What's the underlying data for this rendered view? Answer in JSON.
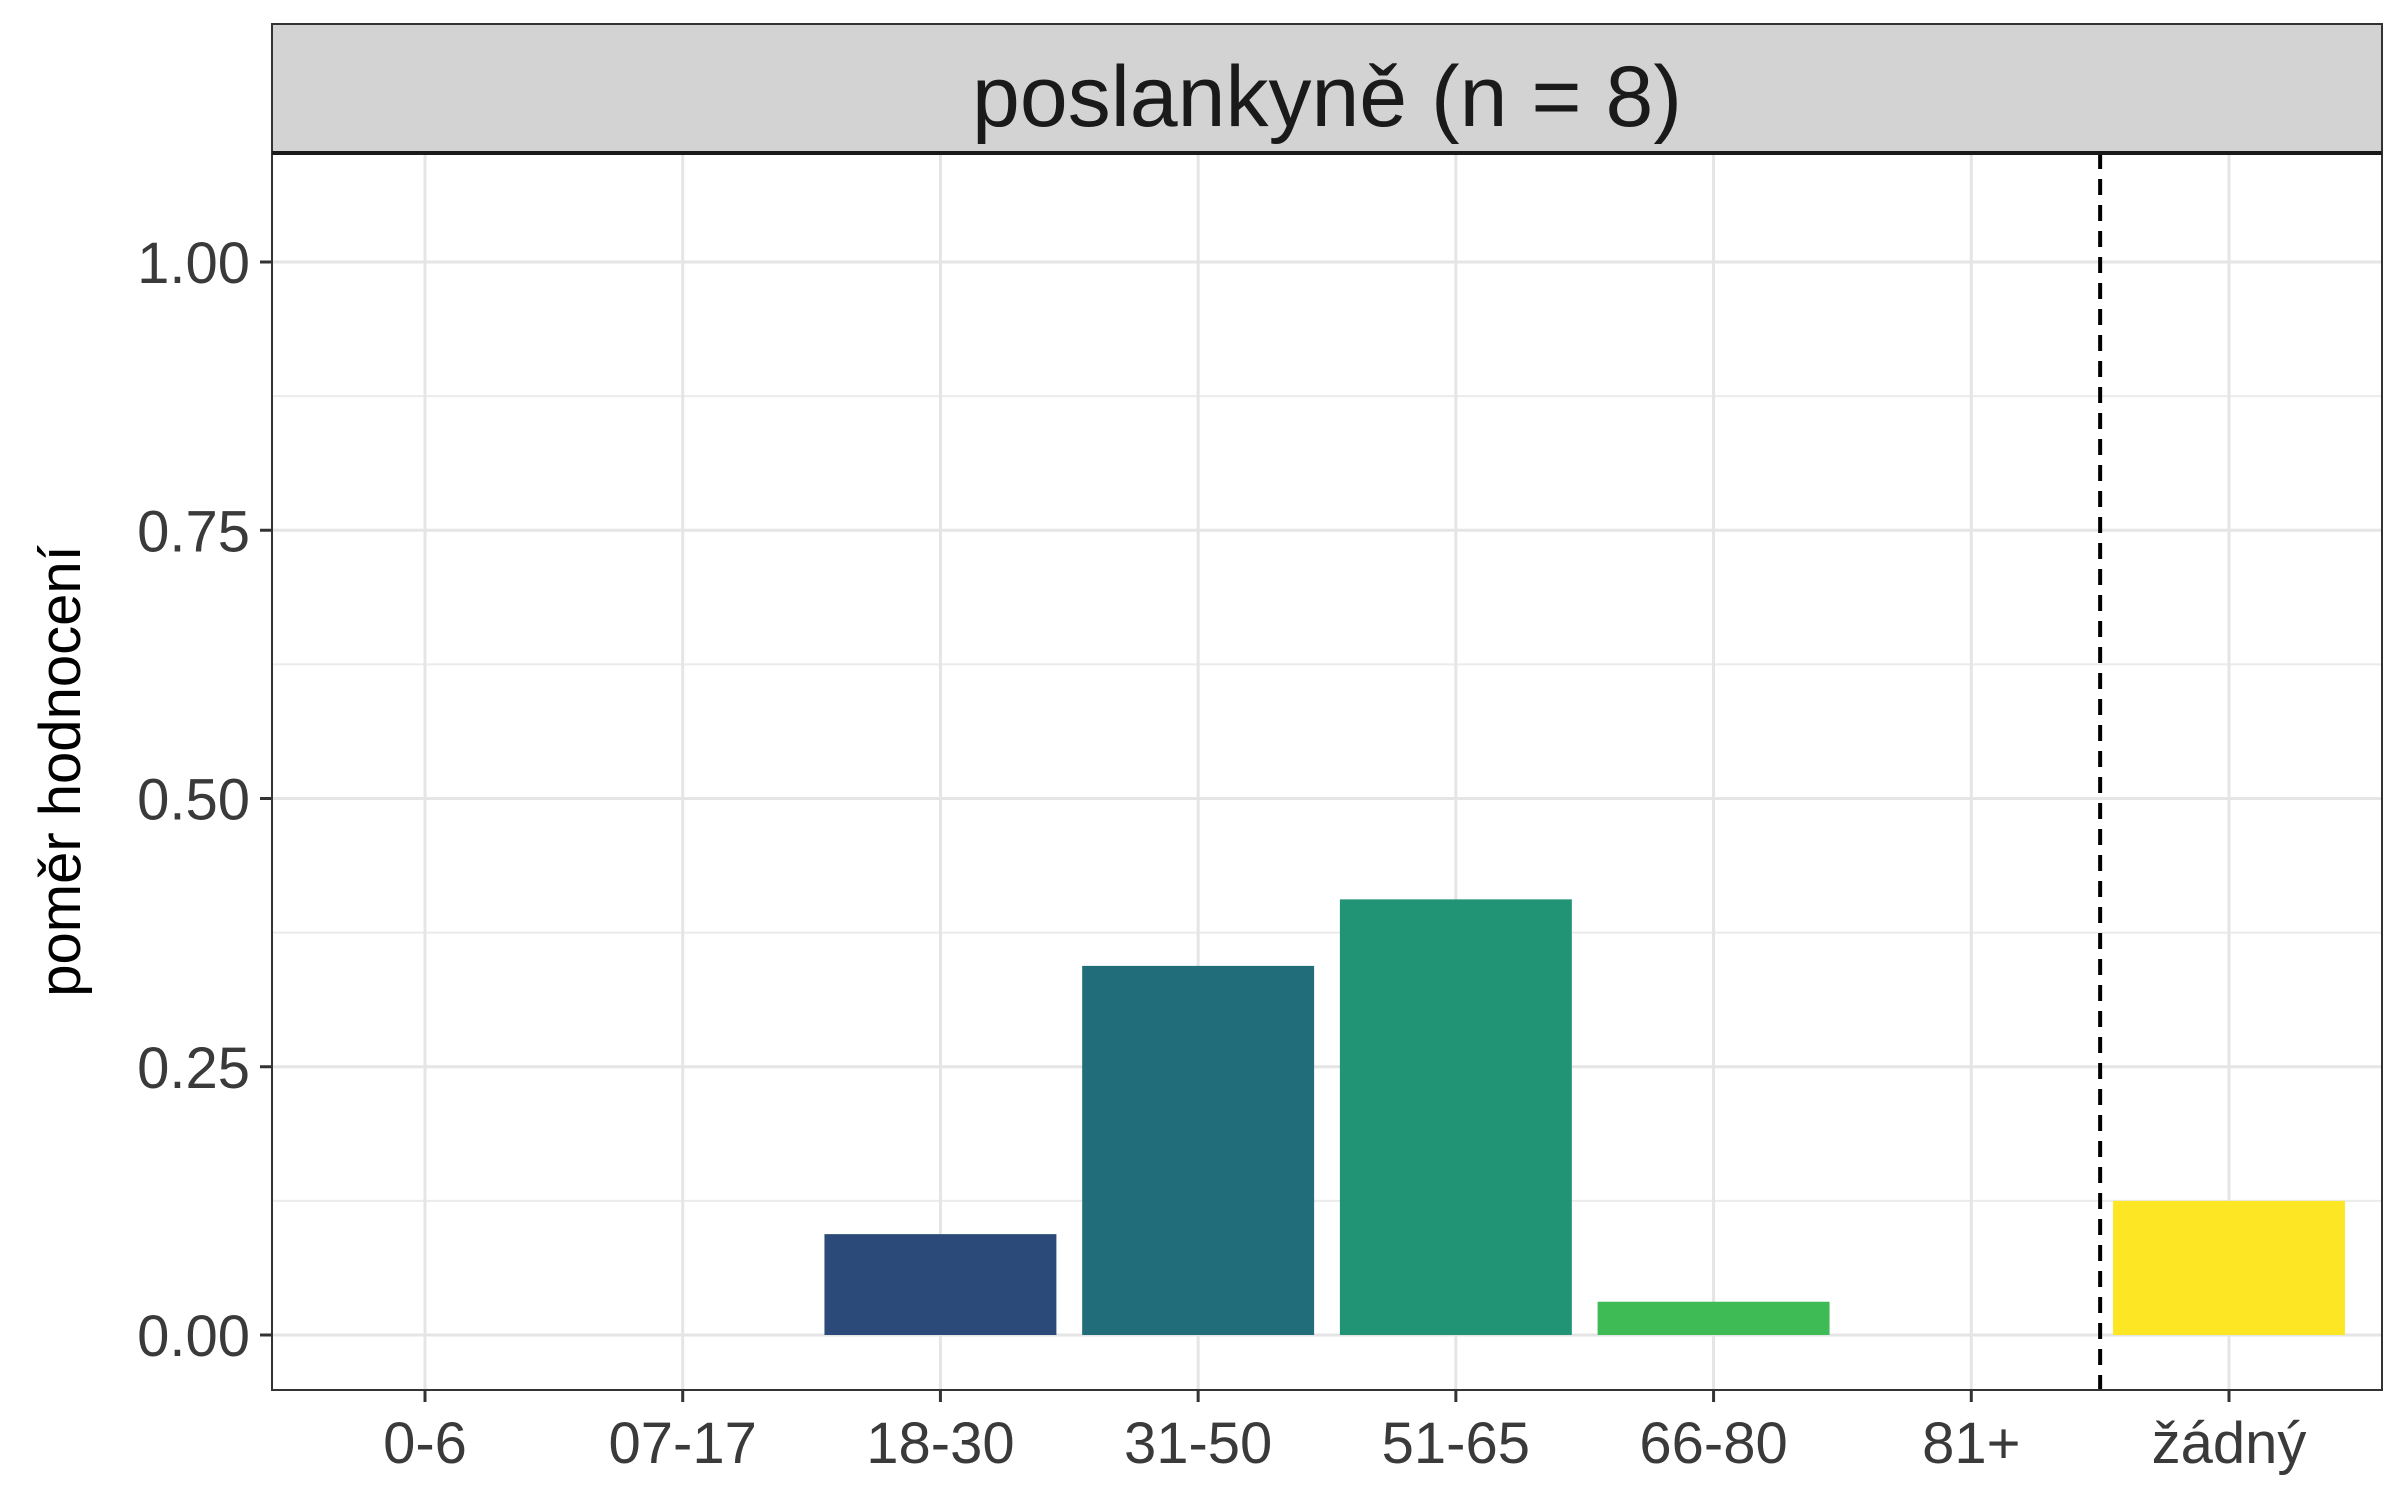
{
  "chart_data": {
    "type": "bar",
    "title": "poslankyně (n = 8)",
    "xlabel": "",
    "ylabel": "poměr hodnocení",
    "categories": [
      "0-6",
      "07-17",
      "18-30",
      "31-50",
      "51-65",
      "66-80",
      "81+",
      "žádný"
    ],
    "values": [
      0,
      0,
      0.094,
      0.344,
      0.406,
      0.031,
      0,
      0.125
    ],
    "colors": [
      "#440154",
      "#46327E",
      "#2B4A7A",
      "#216E7A",
      "#219476",
      "#3FBB56",
      "#8FD744",
      "#FDE725"
    ],
    "ylim": [
      -0.05,
      1.1
    ],
    "yticks": [
      "0.00",
      "0.25",
      "0.50",
      "0.75",
      "1.00"
    ],
    "ytick_values": [
      0,
      0.25,
      0.5,
      0.75,
      1.0
    ],
    "reference_line": {
      "between": [
        "81+",
        "žádný"
      ],
      "style": "dashed"
    },
    "grid": true,
    "legend": "none"
  }
}
